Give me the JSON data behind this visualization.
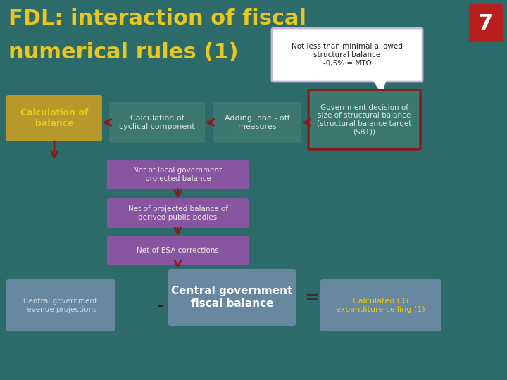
{
  "bg_color": "#2d6b6b",
  "title_line1": "FDL: interaction of fiscal",
  "title_line2": "numerical rules (1)",
  "title_color": "#e8c820",
  "title_fontsize": 22,
  "slide_number": "7",
  "slide_num_bg": "#b82020",
  "slide_num_color": "#ffffff",
  "callout_text": "Not less than minimal allowed\nstructural balance\n-0,5% = MTO",
  "callout_bg": "#ffffff",
  "callout_border": "#c8b4d8",
  "boxes_row1": [
    {
      "label": "Calculation of\nbalance",
      "bg": "#b8982a",
      "text_color": "#e8c820",
      "font_bold": true,
      "fontsize": 9,
      "border": "#b8982a"
    },
    {
      "label": "Calculation of\ncyclical component",
      "bg": "#3d7870",
      "text_color": "#dde8e4",
      "font_bold": false,
      "fontsize": 8,
      "border": "#3d7870"
    },
    {
      "label": "Adding  one - off\nmeasures",
      "bg": "#3d7870",
      "text_color": "#dde8e4",
      "font_bold": false,
      "fontsize": 8,
      "border": "#3d7870"
    },
    {
      "label": "Government decision of\nsize of structural balance\n(structural balance target\n(SBT))",
      "bg": "#3d7870",
      "text_color": "#dde8e4",
      "font_bold": false,
      "fontsize": 7.5,
      "border": "#7a1010"
    }
  ],
  "boxes_center": [
    {
      "label": "Net of local government\nprojected balance",
      "bg": "#8855a0",
      "text_color": "#e8e8e8",
      "fontsize": 7.5
    },
    {
      "label": "Net of projected balance of\nderived public bodies",
      "bg": "#8855a0",
      "text_color": "#e8e8e8",
      "fontsize": 7.5
    },
    {
      "label": "Net of ESA corrections",
      "bg": "#8855a0",
      "text_color": "#e8e8e8",
      "fontsize": 7.5
    }
  ],
  "boxes_bottom": [
    {
      "label": "Central government\nrevenue projections",
      "bg": "#6888a0",
      "text_color": "#c8d8e0",
      "fontsize": 7.5,
      "bold": false
    },
    {
      "label": "Central government\nfiscal balance",
      "bg": "#6888a0",
      "text_color": "#ffffff",
      "fontsize": 11,
      "bold": true
    },
    {
      "label": "Calculated CG\nexpenditure ceiling (1)",
      "bg": "#6888a0",
      "text_color": "#e8c820",
      "fontsize": 8,
      "bold": false
    }
  ],
  "arrow_color": "#8b1a1a"
}
